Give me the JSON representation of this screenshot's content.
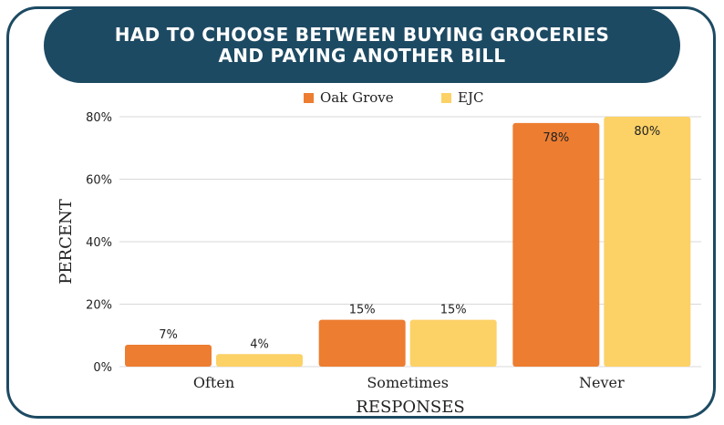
{
  "title_lines": [
    "HAD TO CHOOSE BETWEEN BUYING GROCERIES",
    "AND PAYING ANOTHER BILL"
  ],
  "colors": {
    "frame": "#1d4a63",
    "oak_grove": "#ed7d31",
    "ejc": "#fcd166",
    "grid": "#d9d9d9"
  },
  "chart_data": {
    "type": "bar",
    "title": "HAD TO CHOOSE BETWEEN BUYING GROCERIES AND PAYING ANOTHER BILL",
    "categories": [
      "Often",
      "Sometimes",
      "Never"
    ],
    "series": [
      {
        "name": "Oak Grove",
        "values": [
          7,
          15,
          78
        ],
        "labels": [
          "7%",
          "15%",
          "78%"
        ]
      },
      {
        "name": "EJC",
        "values": [
          4,
          15,
          80
        ],
        "labels": [
          "4%",
          "15%",
          "80%"
        ]
      }
    ],
    "xlabel": "RESPONSES",
    "ylabel": "PERCENT",
    "ylim": [
      0,
      80
    ],
    "yticks": [
      0,
      20,
      40,
      60,
      80
    ],
    "ytick_labels": [
      "0%",
      "20%",
      "40%",
      "60%",
      "80%"
    ],
    "grid": false,
    "legend": "top"
  }
}
